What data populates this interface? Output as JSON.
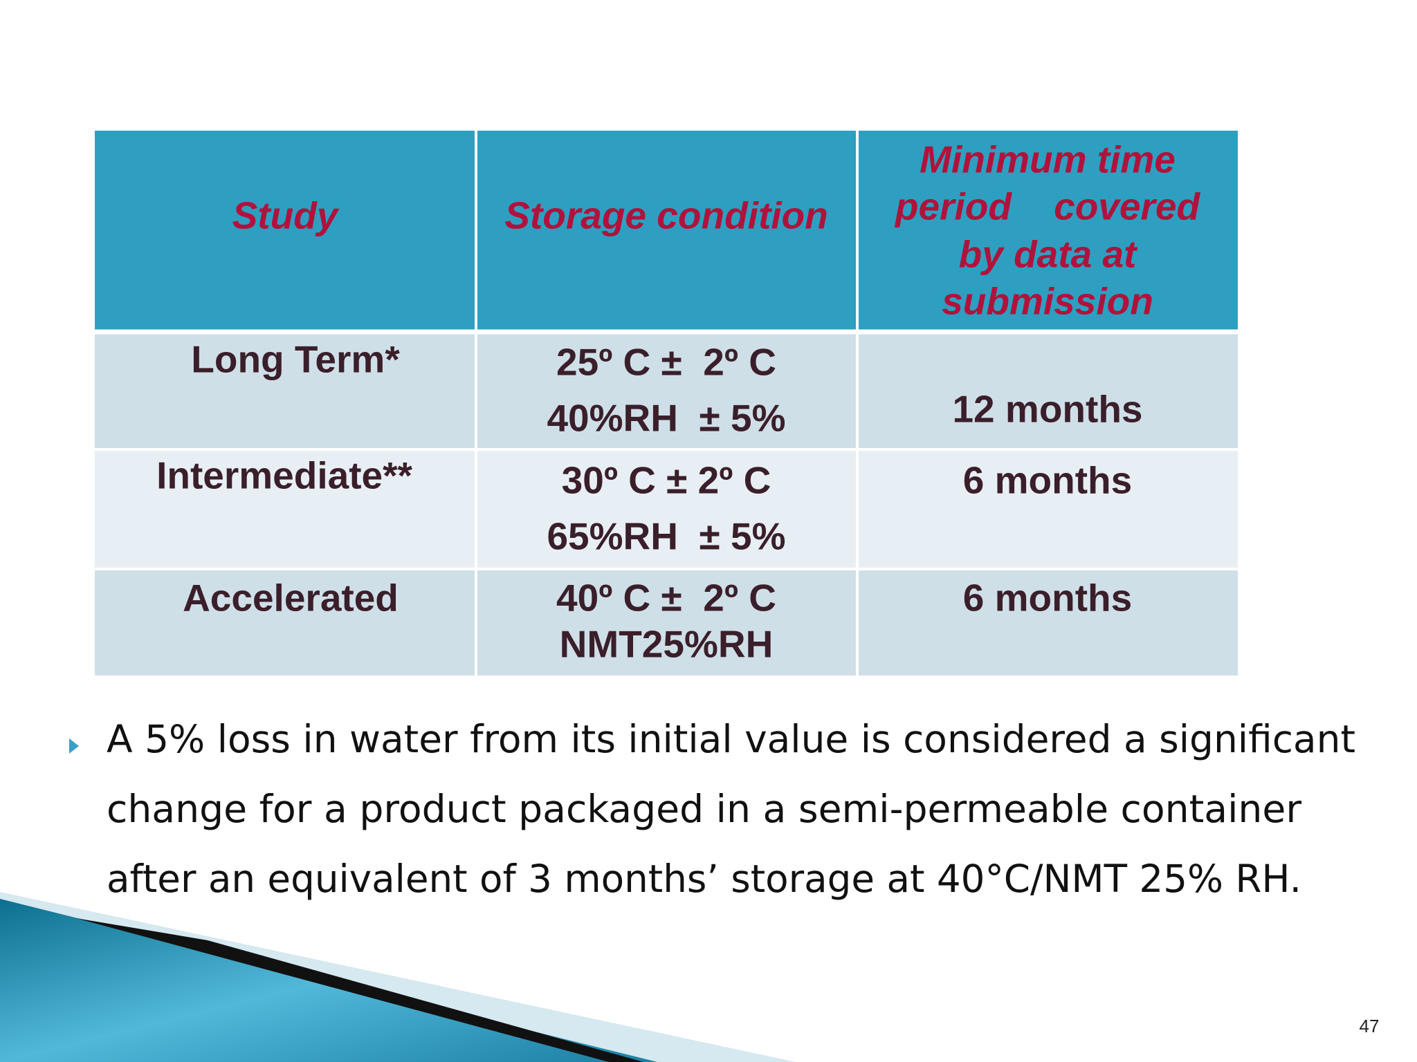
{
  "table": {
    "header": [
      [
        "Study"
      ],
      [
        "Storage condition"
      ],
      [
        "Minimum time",
        "period    covered",
        "by data at",
        "submission"
      ]
    ],
    "rows": [
      [
        [
          "Long Term*"
        ],
        [
          "25º C ±  2º C",
          "40%RH  ± 5%"
        ],
        [
          "12 months"
        ]
      ],
      [
        [
          "Intermediate**"
        ],
        [
          "30º C ± 2º C",
          "65%RH  ± 5%"
        ],
        [
          "6 months"
        ]
      ],
      [
        [
          "Accelerated"
        ],
        [
          "40º C ±  2º C",
          "NMT25%RH"
        ],
        [
          "6 months"
        ]
      ]
    ]
  },
  "bullet": {
    "lines": [
      "A 5% loss in water from its initial value is considered a significant",
      "change for a product packaged in a semi-permeable container",
      "after an equivalent of 3 months’ storage at 40°C/NMT 25% RH."
    ]
  },
  "page_number": "47"
}
